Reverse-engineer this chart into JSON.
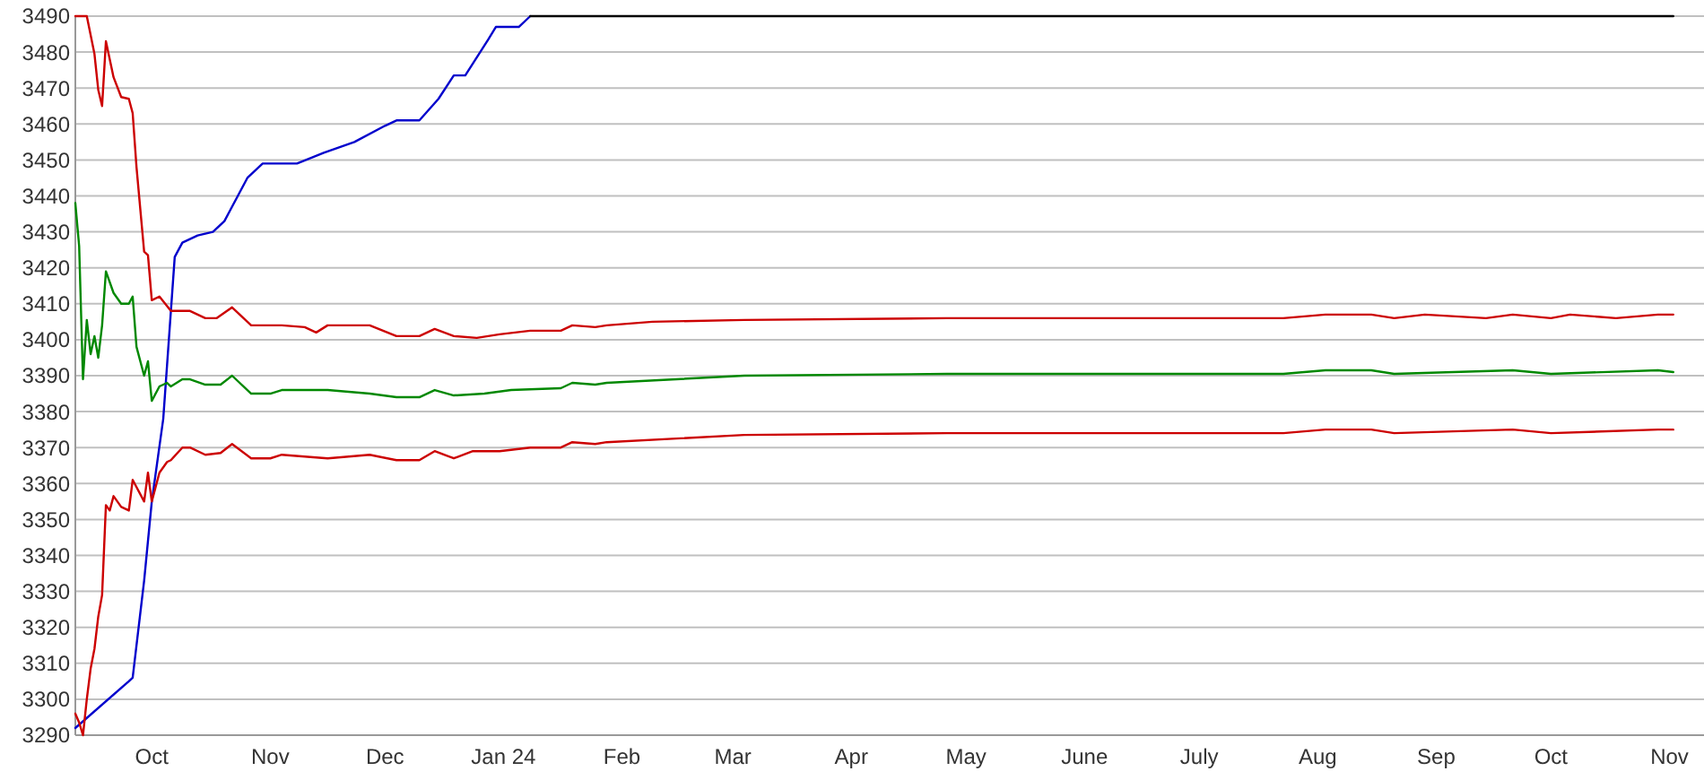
{
  "chart_data": {
    "type": "line",
    "ylim": [
      3290,
      3490
    ],
    "yticks": [
      3290,
      3300,
      3310,
      3320,
      3330,
      3340,
      3350,
      3360,
      3370,
      3380,
      3390,
      3400,
      3410,
      3420,
      3430,
      3440,
      3450,
      3460,
      3470,
      3480,
      3490
    ],
    "xlim": [
      "2023-09-11",
      "2024-11-03"
    ],
    "xticks": [
      {
        "value": "2023-10-01",
        "label": "Oct"
      },
      {
        "value": "2023-11-01",
        "label": "Nov"
      },
      {
        "value": "2023-12-01",
        "label": "Dec"
      },
      {
        "value": "2024-01-01",
        "label": "Jan 24"
      },
      {
        "value": "2024-02-01",
        "label": "Feb"
      },
      {
        "value": "2024-03-01",
        "label": "Mar"
      },
      {
        "value": "2024-04-01",
        "label": "Apr"
      },
      {
        "value": "2024-05-01",
        "label": "May"
      },
      {
        "value": "2024-06-01",
        "label": "June"
      },
      {
        "value": "2024-07-01",
        "label": "July"
      },
      {
        "value": "2024-08-01",
        "label": "Aug"
      },
      {
        "value": "2024-09-01",
        "label": "Sep"
      },
      {
        "value": "2024-10-01",
        "label": "Oct"
      },
      {
        "value": "2024-11-01",
        "label": "Nov"
      }
    ],
    "grid": "y",
    "series": [
      {
        "color": "#0000cc",
        "x": [
          "2023-09-11",
          "2023-09-25",
          "2023-09-26",
          "2023-09-29",
          "2023-10-01",
          "2023-10-04",
          "2023-10-07",
          "2023-10-09",
          "2023-10-13",
          "2023-10-17",
          "2023-10-20",
          "2023-10-26",
          "2023-10-30",
          "2023-11-08",
          "2023-11-15",
          "2023-11-23",
          "2023-12-01",
          "2023-12-04",
          "2023-12-10",
          "2023-12-15",
          "2023-12-19",
          "2023-12-22",
          "2023-12-28",
          "2023-12-30",
          "2024-01-05",
          "2024-01-08"
        ],
        "values": [
          3292,
          3305,
          3306,
          3333,
          3355,
          3378,
          3423,
          3427,
          3429,
          3430,
          3433,
          3445,
          3449,
          3449,
          3452,
          3455,
          3459.5,
          3461,
          3461,
          3467,
          3473.5,
          3473.5,
          3483.5,
          3487,
          3487,
          3490
        ]
      },
      {
        "color": "#000000",
        "x": [
          "2024-01-08",
          "2024-11-02"
        ],
        "values": [
          3490,
          3490
        ]
      },
      {
        "color": "#cc0000",
        "x": [
          "2023-09-11",
          "2023-09-14",
          "2023-09-16",
          "2023-09-17",
          "2023-09-18",
          "2023-09-19",
          "2023-09-21",
          "2023-09-23",
          "2023-09-25",
          "2023-09-26",
          "2023-09-27",
          "2023-09-29",
          "2023-09-30",
          "2023-10-01",
          "2023-10-03",
          "2023-10-06",
          "2023-10-11",
          "2023-10-15",
          "2023-10-18",
          "2023-10-22",
          "2023-10-27",
          "2023-11-01",
          "2023-11-04",
          "2023-11-10",
          "2023-11-13",
          "2023-11-16",
          "2023-11-27",
          "2023-12-04",
          "2023-12-10",
          "2023-12-14",
          "2023-12-19",
          "2023-12-25",
          "2023-12-31",
          "2024-01-08",
          "2024-01-16",
          "2024-01-19",
          "2024-01-25",
          "2024-01-28",
          "2024-02-09",
          "2024-03-04",
          "2024-04-26",
          "2024-05-13",
          "2024-06-19",
          "2024-07-23",
          "2024-08-03",
          "2024-08-15",
          "2024-08-21",
          "2024-08-29",
          "2024-09-14",
          "2024-09-21",
          "2024-10-01",
          "2024-10-06",
          "2024-10-18",
          "2024-10-29",
          "2024-11-02"
        ],
        "values": [
          3490,
          3490,
          3479.5,
          3469.5,
          3465,
          3483,
          3473,
          3467.5,
          3467,
          3463,
          3448,
          3424.5,
          3423.5,
          3411,
          3412,
          3408,
          3408,
          3406,
          3406,
          3409,
          3404,
          3404,
          3404,
          3403.5,
          3402,
          3404,
          3404,
          3401,
          3401,
          3403,
          3401,
          3400.5,
          3401.5,
          3402.5,
          3402.5,
          3404,
          3403.5,
          3404,
          3405,
          3405.5,
          3406,
          3406,
          3406,
          3406,
          3407,
          3407,
          3406,
          3407,
          3406,
          3407,
          3406,
          3407,
          3406,
          3407,
          3407
        ]
      },
      {
        "color": "#008800",
        "x": [
          "2023-09-11",
          "2023-09-12",
          "2023-09-13",
          "2023-09-14",
          "2023-09-15",
          "2023-09-16",
          "2023-09-17",
          "2023-09-18",
          "2023-09-19",
          "2023-09-21",
          "2023-09-23",
          "2023-09-25",
          "2023-09-26",
          "2023-09-27",
          "2023-09-29",
          "2023-09-30",
          "2023-10-01",
          "2023-10-03",
          "2023-10-05",
          "2023-10-06",
          "2023-10-09",
          "2023-10-11",
          "2023-10-15",
          "2023-10-19",
          "2023-10-22",
          "2023-10-27",
          "2023-11-01",
          "2023-11-04",
          "2023-11-16",
          "2023-11-27",
          "2023-12-04",
          "2023-12-10",
          "2023-12-14",
          "2023-12-19",
          "2023-12-27",
          "2024-01-03",
          "2024-01-16",
          "2024-01-19",
          "2024-01-25",
          "2024-01-28",
          "2024-03-04",
          "2024-04-26",
          "2024-07-23",
          "2024-08-03",
          "2024-08-15",
          "2024-08-21",
          "2024-09-21",
          "2024-10-01",
          "2024-10-29",
          "2024-11-02"
        ],
        "values": [
          3438,
          3426,
          3389,
          3405.5,
          3396,
          3401,
          3395,
          3404,
          3419,
          3413,
          3410,
          3410,
          3412,
          3398,
          3390,
          3394,
          3383,
          3387,
          3388,
          3387,
          3389,
          3389,
          3387.5,
          3387.5,
          3390,
          3385,
          3385,
          3386,
          3386,
          3385,
          3384,
          3384,
          3386,
          3384.5,
          3385,
          3386,
          3386.5,
          3388,
          3387.5,
          3388,
          3390,
          3390.5,
          3390.5,
          3391.5,
          3391.5,
          3390.5,
          3391.5,
          3390.5,
          3391.5,
          3391
        ]
      },
      {
        "color": "#cc0000",
        "x": [
          "2023-09-11",
          "2023-09-12",
          "2023-09-13",
          "2023-09-14",
          "2023-09-15",
          "2023-09-16",
          "2023-09-17",
          "2023-09-18",
          "2023-09-19",
          "2023-09-20",
          "2023-09-21",
          "2023-09-23",
          "2023-09-25",
          "2023-09-26",
          "2023-09-29",
          "2023-09-30",
          "2023-10-01",
          "2023-10-03",
          "2023-10-05",
          "2023-10-06",
          "2023-10-09",
          "2023-10-11",
          "2023-10-15",
          "2023-10-19",
          "2023-10-22",
          "2023-10-27",
          "2023-11-01",
          "2023-11-04",
          "2023-11-16",
          "2023-11-27",
          "2023-12-04",
          "2023-12-10",
          "2023-12-14",
          "2023-12-19",
          "2023-12-24",
          "2023-12-31",
          "2024-01-08",
          "2024-01-16",
          "2024-01-19",
          "2024-01-25",
          "2024-01-28",
          "2024-03-04",
          "2024-04-26",
          "2024-07-23",
          "2024-08-03",
          "2024-08-15",
          "2024-08-21",
          "2024-09-21",
          "2024-10-01",
          "2024-10-29",
          "2024-11-02"
        ],
        "values": [
          3296,
          3293.5,
          3290,
          3300,
          3308.5,
          3314,
          3323,
          3329,
          3354,
          3352.5,
          3356.5,
          3353.5,
          3352.5,
          3361,
          3355,
          3363,
          3355,
          3363,
          3366,
          3366.5,
          3370,
          3370,
          3368,
          3368.5,
          3371,
          3367,
          3367,
          3368,
          3367,
          3368,
          3366.5,
          3366.5,
          3369,
          3367,
          3369,
          3369,
          3370,
          3370,
          3371.5,
          3371,
          3371.5,
          3373.5,
          3374,
          3374,
          3375,
          3375,
          3374,
          3375,
          3374,
          3375,
          3375
        ]
      }
    ]
  }
}
